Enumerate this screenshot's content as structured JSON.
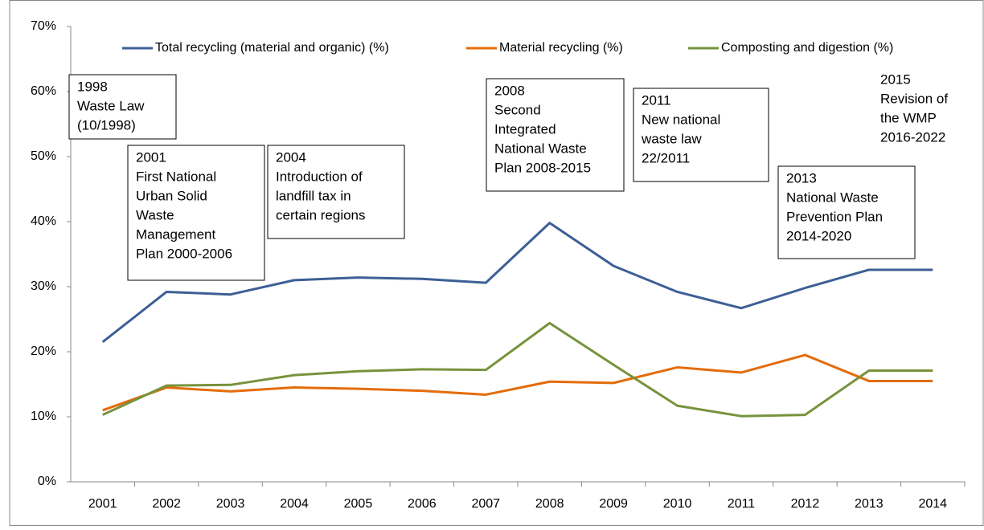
{
  "chart_data": {
    "type": "line",
    "categories": [
      "2001",
      "2002",
      "2003",
      "2004",
      "2005",
      "2006",
      "2007",
      "2008",
      "2009",
      "2010",
      "2011",
      "2012",
      "2013",
      "2014"
    ],
    "series": [
      {
        "name": "Total recycling (material and organic) (%)",
        "color": "#3d5f96",
        "values": [
          21.5,
          29.2,
          28.8,
          31.0,
          31.4,
          31.2,
          30.6,
          39.8,
          33.2,
          29.2,
          26.7,
          29.8,
          32.6,
          32.6
        ]
      },
      {
        "name": "Material recycling (%)",
        "color": "#e46c0a",
        "values": [
          11.0,
          14.5,
          13.9,
          14.5,
          14.3,
          14.0,
          13.4,
          15.4,
          15.2,
          17.6,
          16.8,
          19.5,
          15.5,
          15.5
        ]
      },
      {
        "name": "Composting and digestion (%)",
        "color": "#77933c",
        "values": [
          10.3,
          14.8,
          14.9,
          16.4,
          17.0,
          17.3,
          17.2,
          24.4,
          18.0,
          11.7,
          10.1,
          10.3,
          17.1,
          17.1
        ]
      }
    ],
    "ylim": [
      0,
      70
    ],
    "yticks": [
      {
        "value": 0,
        "label": "0%"
      },
      {
        "value": 10,
        "label": "10%"
      },
      {
        "value": 20,
        "label": "20%"
      },
      {
        "value": 30,
        "label": "30%"
      },
      {
        "value": 40,
        "label": "40%"
      },
      {
        "value": 50,
        "label": "50%"
      },
      {
        "value": 60,
        "label": "60%"
      },
      {
        "value": 70,
        "label": "70%"
      }
    ],
    "grid": false,
    "annotations": [
      {
        "lines": [
          "1998",
          "Waste Law",
          "(10/1998)"
        ]
      },
      {
        "lines": [
          "2001",
          "First National",
          "Urban Solid",
          "Waste",
          "Management",
          "Plan 2000-2006"
        ]
      },
      {
        "lines": [
          "2004",
          "Introduction of",
          "landfill tax in",
          "certain regions"
        ]
      },
      {
        "lines": [
          "2008",
          "Second",
          "Integrated",
          "National Waste",
          "Plan 2008-2015"
        ]
      },
      {
        "lines": [
          "2011",
          "New national",
          "waste law",
          "22/2011"
        ]
      },
      {
        "lines": [
          "2013",
          "National Waste",
          "Prevention Plan",
          "2014-2020"
        ]
      },
      {
        "lines": [
          "2015",
          "Revision of",
          "the WMP",
          "2016-2022"
        ]
      }
    ]
  }
}
